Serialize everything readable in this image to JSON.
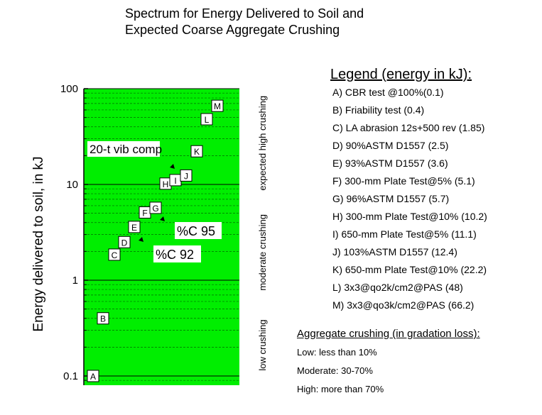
{
  "title": {
    "line1": "Spectrum for Energy Delivered to Soil and",
    "line2": "Expected Coarse Aggregate Crushing"
  },
  "colors": {
    "plot_background": "#00ee00",
    "grid": "#000000",
    "label_box": "#ffffff"
  },
  "legend": {
    "title": "Legend (energy in kJ):",
    "items": [
      "A) CBR test @100%(0.1)",
      "B) Friability test (0.4)",
      "C) LA abrasion 12s+500 rev (1.85)",
      "D) 90%ASTM D1557 (2.5)",
      "E) 93%ASTM D1557 (3.6)",
      "F) 300-mm Plate Test@5% (5.1)",
      "G) 96%ASTM D1557 (5.7)",
      "H) 300-mm Plate Test@10% (10.2)",
      "I) 650-mm Plate Test@5% (11.1)",
      "J) 103%ASTM D1557 (12.4)",
      "K) 650-mm Plate Test@10% (22.2)",
      "L) 3x3@qo2k/cm2@PAS (48)",
      "M) 3x3@qo3k/cm2@PAS (66.2)"
    ]
  },
  "aggregate": {
    "title": "Aggregate crushing (in gradation loss):",
    "items": [
      "Low: less than 10%",
      "Moderate: 30-70%",
      "High: more than 70%"
    ]
  },
  "chart_data": {
    "type": "scatter",
    "yscale": "log",
    "ylim": [
      0.08,
      100
    ],
    "ylabel": "Energy delivered to soil, in kJ",
    "yticks": [
      {
        "value": 0.1,
        "label": "0.1"
      },
      {
        "value": 1,
        "label": "1"
      },
      {
        "value": 10,
        "label": "10"
      },
      {
        "value": 100,
        "label": "100"
      }
    ],
    "points": [
      {
        "label": "A",
        "value": 0.1
      },
      {
        "label": "B",
        "value": 0.4
      },
      {
        "label": "C",
        "value": 1.85
      },
      {
        "label": "D",
        "value": 2.5
      },
      {
        "label": "E",
        "value": 3.6
      },
      {
        "label": "F",
        "value": 5.1
      },
      {
        "label": "G",
        "value": 5.7
      },
      {
        "label": "H",
        "value": 10.2
      },
      {
        "label": "I",
        "value": 11.1
      },
      {
        "label": "J",
        "value": 12.4
      },
      {
        "label": "K",
        "value": 22.2
      },
      {
        "label": "L",
        "value": 48
      },
      {
        "label": "M",
        "value": 66.2
      }
    ],
    "annotations": [
      {
        "text": "20-t vib comp",
        "value": 15.5
      },
      {
        "text": "%C 95",
        "value": 4.5
      },
      {
        "text": "%C 92",
        "value": 2.8
      }
    ],
    "zones": [
      {
        "label": "low crushing",
        "range": [
          0.08,
          0.5
        ]
      },
      {
        "label": "moderate crushing",
        "range": [
          0.6,
          6
        ]
      },
      {
        "label": "expected high crushing",
        "range": [
          7,
          100
        ]
      }
    ]
  }
}
